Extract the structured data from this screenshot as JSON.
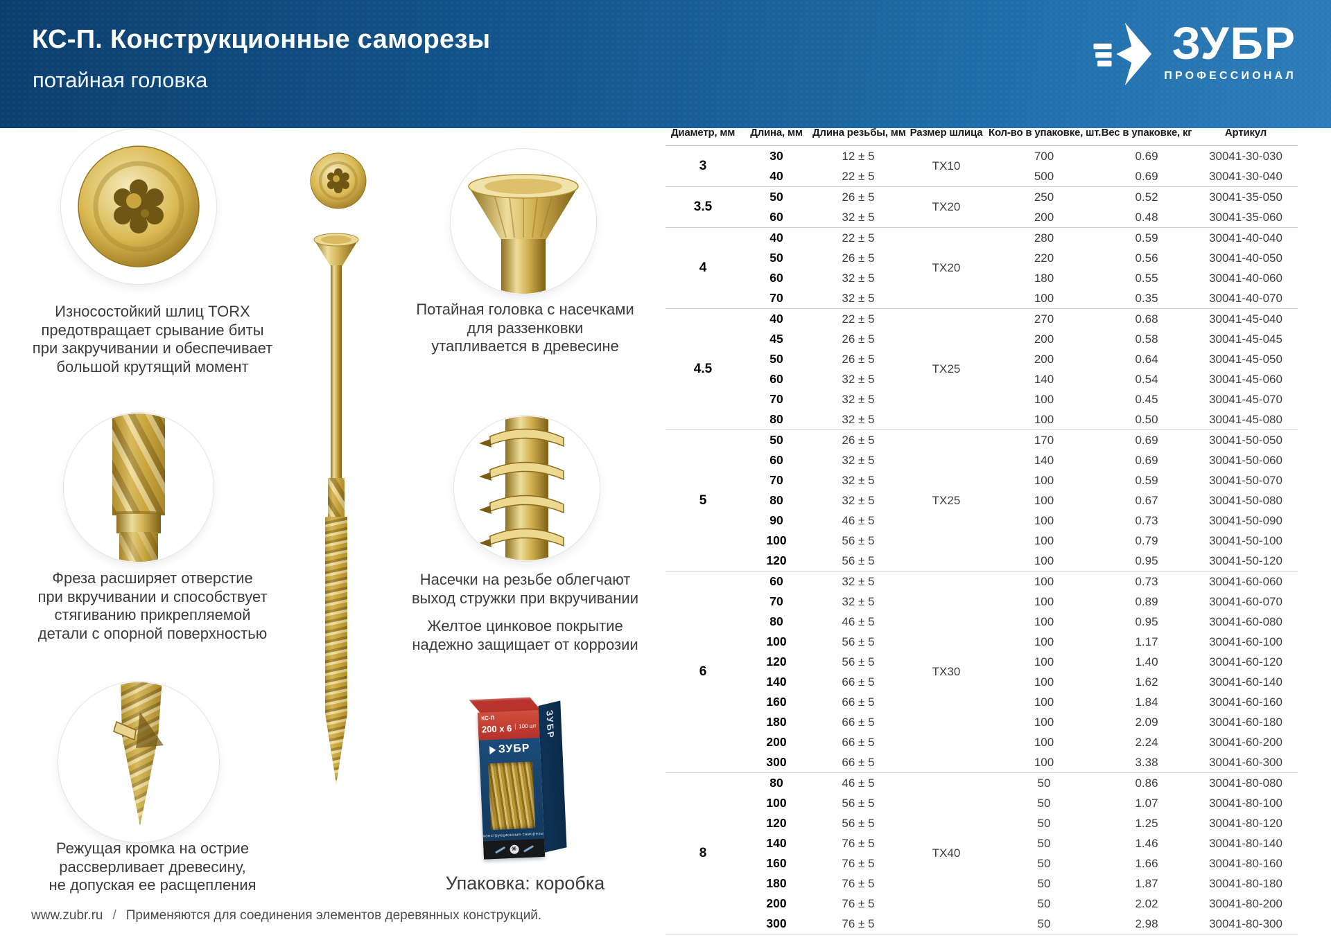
{
  "header": {
    "title": "КС-П. Конструкционные саморезы",
    "subtitle": "потайная головка",
    "brand": "ЗУБР",
    "brand_tagline": "ПРОФЕССИОНАЛ"
  },
  "features_left": [
    {
      "lines": [
        "Износостойкий шлиц TORX",
        "предотвращает срывание биты",
        "при закручивании и обеспечивает",
        "большой крутящий момент"
      ]
    },
    {
      "lines": [
        "Фреза расширяет отверстие",
        "при вкручивании и способствует",
        "стягиванию прикрепляемой",
        "детали с опорной поверхностью"
      ]
    },
    {
      "lines": [
        "Режущая кромка на острие",
        "рассверливает древесину,",
        "не допуская ее расщепления"
      ]
    }
  ],
  "features_middle": [
    {
      "lines": [
        "Потайная головка с насечками",
        "для раззенковки",
        "утапливается в древесине"
      ]
    },
    {
      "lines": [
        "Насечки на резьбе облегчают",
        "выход стружки при вкручивании"
      ]
    },
    {
      "lines": [
        "Желтое цинковое покрытие",
        "надежно защищает от коррозии"
      ]
    }
  ],
  "package_caption": "Упаковка: коробка",
  "box": {
    "model": "КС-П",
    "size": "200 х 6",
    "qty": "100 шт",
    "brand": "ЗУБР",
    "desc": "конструкционные саморезы"
  },
  "footer": {
    "site": "www.zubr.ru",
    "separator": "/",
    "note": "Применяются для соединения элементов деревянных конструкций."
  },
  "table": {
    "headers": [
      "Диаметр, мм",
      "Длина, мм",
      "Длина резьбы, мм",
      "Размер шлица",
      "Кол-во в упаковке, шт.",
      "Вес в упаковке, кг",
      "Артикул"
    ],
    "groups": [
      {
        "diameter": "3",
        "tx": "TX10",
        "rows": [
          {
            "len": "30",
            "thread": "12 ± 5",
            "qty": "700",
            "weight": "0.69",
            "art": "30041-30-030"
          },
          {
            "len": "40",
            "thread": "22 ± 5",
            "qty": "500",
            "weight": "0.69",
            "art": "30041-30-040"
          }
        ]
      },
      {
        "diameter": "3.5",
        "tx": "TX20",
        "rows": [
          {
            "len": "50",
            "thread": "26 ± 5",
            "qty": "250",
            "weight": "0.52",
            "art": "30041-35-050"
          },
          {
            "len": "60",
            "thread": "32 ± 5",
            "qty": "200",
            "weight": "0.48",
            "art": "30041-35-060"
          }
        ]
      },
      {
        "diameter": "4",
        "tx": "TX20",
        "rows": [
          {
            "len": "40",
            "thread": "22 ± 5",
            "qty": "280",
            "weight": "0.59",
            "art": "30041-40-040"
          },
          {
            "len": "50",
            "thread": "26 ± 5",
            "qty": "220",
            "weight": "0.56",
            "art": "30041-40-050"
          },
          {
            "len": "60",
            "thread": "32 ± 5",
            "qty": "180",
            "weight": "0.55",
            "art": "30041-40-060"
          },
          {
            "len": "70",
            "thread": "32 ± 5",
            "qty": "100",
            "weight": "0.35",
            "art": "30041-40-070"
          }
        ]
      },
      {
        "diameter": "4.5",
        "tx": "TX25",
        "rows": [
          {
            "len": "40",
            "thread": "22 ± 5",
            "qty": "270",
            "weight": "0.68",
            "art": "30041-45-040"
          },
          {
            "len": "45",
            "thread": "26 ± 5",
            "qty": "200",
            "weight": "0.58",
            "art": "30041-45-045"
          },
          {
            "len": "50",
            "thread": "26 ± 5",
            "qty": "200",
            "weight": "0.64",
            "art": "30041-45-050"
          },
          {
            "len": "60",
            "thread": "32 ± 5",
            "qty": "140",
            "weight": "0.54",
            "art": "30041-45-060"
          },
          {
            "len": "70",
            "thread": "32 ± 5",
            "qty": "100",
            "weight": "0.45",
            "art": "30041-45-070"
          },
          {
            "len": "80",
            "thread": "32 ± 5",
            "qty": "100",
            "weight": "0.50",
            "art": "30041-45-080"
          }
        ]
      },
      {
        "diameter": "5",
        "tx": "TX25",
        "rows": [
          {
            "len": "50",
            "thread": "26 ± 5",
            "qty": "170",
            "weight": "0.69",
            "art": "30041-50-050"
          },
          {
            "len": "60",
            "thread": "32 ± 5",
            "qty": "140",
            "weight": "0.69",
            "art": "30041-50-060"
          },
          {
            "len": "70",
            "thread": "32 ± 5",
            "qty": "100",
            "weight": "0.59",
            "art": "30041-50-070"
          },
          {
            "len": "80",
            "thread": "32 ± 5",
            "qty": "100",
            "weight": "0.67",
            "art": "30041-50-080"
          },
          {
            "len": "90",
            "thread": "46 ± 5",
            "qty": "100",
            "weight": "0.73",
            "art": "30041-50-090"
          },
          {
            "len": "100",
            "thread": "56 ± 5",
            "qty": "100",
            "weight": "0.79",
            "art": "30041-50-100"
          },
          {
            "len": "120",
            "thread": "56 ± 5",
            "qty": "100",
            "weight": "0.95",
            "art": "30041-50-120"
          }
        ]
      },
      {
        "diameter": "6",
        "tx": "TX30",
        "rows": [
          {
            "len": "60",
            "thread": "32 ± 5",
            "qty": "100",
            "weight": "0.73",
            "art": "30041-60-060"
          },
          {
            "len": "70",
            "thread": "32 ± 5",
            "qty": "100",
            "weight": "0.89",
            "art": "30041-60-070"
          },
          {
            "len": "80",
            "thread": "46 ± 5",
            "qty": "100",
            "weight": "0.95",
            "art": "30041-60-080"
          },
          {
            "len": "100",
            "thread": "56 ± 5",
            "qty": "100",
            "weight": "1.17",
            "art": "30041-60-100"
          },
          {
            "len": "120",
            "thread": "56 ± 5",
            "qty": "100",
            "weight": "1.40",
            "art": "30041-60-120"
          },
          {
            "len": "140",
            "thread": "66 ± 5",
            "qty": "100",
            "weight": "1.62",
            "art": "30041-60-140"
          },
          {
            "len": "160",
            "thread": "66 ± 5",
            "qty": "100",
            "weight": "1.84",
            "art": "30041-60-160"
          },
          {
            "len": "180",
            "thread": "66 ± 5",
            "qty": "100",
            "weight": "2.09",
            "art": "30041-60-180"
          },
          {
            "len": "200",
            "thread": "66 ± 5",
            "qty": "100",
            "weight": "2.24",
            "art": "30041-60-200"
          },
          {
            "len": "300",
            "thread": "66 ± 5",
            "qty": "100",
            "weight": "3.38",
            "art": "30041-60-300"
          }
        ]
      },
      {
        "diameter": "8",
        "tx": "TX40",
        "rows": [
          {
            "len": "80",
            "thread": "46 ± 5",
            "qty": "50",
            "weight": "0.86",
            "art": "30041-80-080"
          },
          {
            "len": "100",
            "thread": "56 ± 5",
            "qty": "50",
            "weight": "1.07",
            "art": "30041-80-100"
          },
          {
            "len": "120",
            "thread": "56 ± 5",
            "qty": "50",
            "weight": "1.25",
            "art": "30041-80-120"
          },
          {
            "len": "140",
            "thread": "76 ± 5",
            "qty": "50",
            "weight": "1.46",
            "art": "30041-80-140"
          },
          {
            "len": "160",
            "thread": "76 ± 5",
            "qty": "50",
            "weight": "1.66",
            "art": "30041-80-160"
          },
          {
            "len": "180",
            "thread": "76 ± 5",
            "qty": "50",
            "weight": "1.87",
            "art": "30041-80-180"
          },
          {
            "len": "200",
            "thread": "76 ± 5",
            "qty": "50",
            "weight": "2.02",
            "art": "30041-80-200"
          },
          {
            "len": "300",
            "thread": "76 ± 5",
            "qty": "50",
            "weight": "2.98",
            "art": "30041-80-300"
          }
        ]
      }
    ]
  },
  "colors": {
    "header_blue_dark": "#0c3f6e",
    "header_blue_light": "#2e7cb8",
    "brass": "#c9a227",
    "package_red": "#b9342c",
    "package_blue": "#16426a"
  }
}
